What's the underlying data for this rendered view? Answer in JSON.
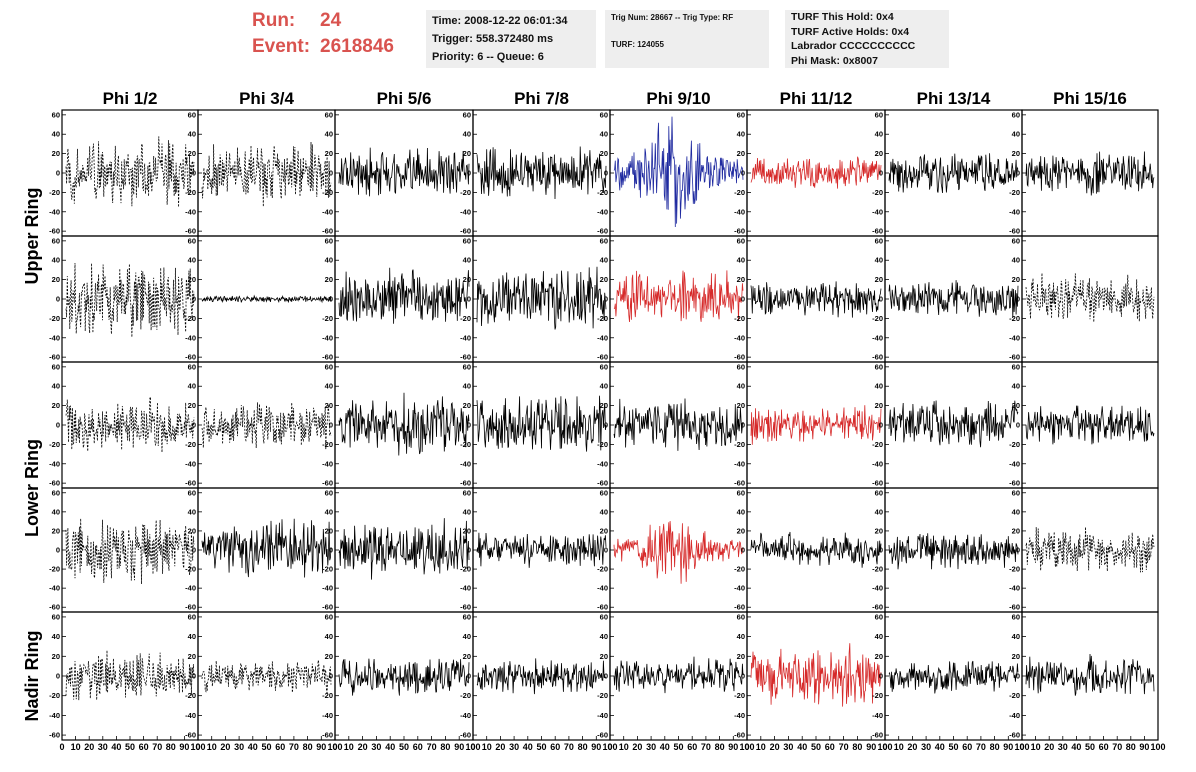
{
  "header": {
    "run_label": "Run:",
    "run_value": "24",
    "event_label": "Event:",
    "event_value": "2618846"
  },
  "info_box_1": {
    "time": "Time: 2008-12-22 06:01:34",
    "trigger": "Trigger: 558.372480 ms",
    "priority": "Priority: 6 -- Queue: 6"
  },
  "info_box_2": {
    "trig": "Trig Num: 28667 -- Trig Type: RF",
    "turf": "TURF: 124055"
  },
  "info_box_3": {
    "turf_hold": "TURF This Hold: 0x4",
    "turf_active": "TURF Active Holds: 0x4",
    "labrador": "Labrador CCCCCCCCCC",
    "phi_mask": "Phi Mask: 0x8007"
  },
  "chart_data": {
    "type": "line",
    "columns": [
      "Phi 1/2",
      "Phi 3/4",
      "Phi 5/6",
      "Phi 7/8",
      "Phi 9/10",
      "Phi 11/12",
      "Phi 13/14",
      "Phi 15/16"
    ],
    "rows": [
      "Upper Ring",
      "",
      "Lower Ring",
      "",
      "Nadir Ring"
    ],
    "ylim": [
      -65,
      65
    ],
    "yticks": [
      -60,
      -40,
      -20,
      0,
      20,
      40,
      60
    ],
    "xlim": [
      0,
      100
    ],
    "xticks": [
      0,
      10,
      20,
      30,
      40,
      50,
      60,
      70,
      80,
      90,
      100
    ],
    "colors": {
      "black": "#000000",
      "blue": "#1f2aa0",
      "red": "#d62a2a"
    },
    "panels": [
      [
        {
          "color": "black",
          "style": "dashed",
          "amp": 32
        },
        {
          "color": "black",
          "style": "dashed",
          "amp": 28
        },
        {
          "color": "black",
          "style": "solid",
          "amp": 22
        },
        {
          "color": "black",
          "style": "solid",
          "amp": 24
        },
        {
          "color": "blue",
          "style": "solid",
          "amp": 30,
          "burst": true
        },
        {
          "color": "red",
          "style": "solid",
          "amp": 14
        },
        {
          "color": "black",
          "style": "solid",
          "amp": 18
        },
        {
          "color": "black",
          "style": "solid",
          "amp": 20
        }
      ],
      [
        {
          "color": "black",
          "style": "dashed",
          "amp": 35
        },
        {
          "color": "black",
          "style": "solid",
          "amp": 3
        },
        {
          "color": "black",
          "style": "solid",
          "amp": 26
        },
        {
          "color": "black",
          "style": "solid",
          "amp": 28
        },
        {
          "color": "red",
          "style": "solid",
          "amp": 24
        },
        {
          "color": "black",
          "style": "solid",
          "amp": 16
        },
        {
          "color": "black",
          "style": "solid",
          "amp": 16
        },
        {
          "color": "black",
          "style": "dashed",
          "amp": 22
        }
      ],
      [
        {
          "color": "black",
          "style": "dashed",
          "amp": 25
        },
        {
          "color": "black",
          "style": "dashed",
          "amp": 22
        },
        {
          "color": "black",
          "style": "solid",
          "amp": 26
        },
        {
          "color": "black",
          "style": "solid",
          "amp": 26
        },
        {
          "color": "black",
          "style": "solid",
          "amp": 22
        },
        {
          "color": "red",
          "style": "solid",
          "amp": 16
        },
        {
          "color": "black",
          "style": "solid",
          "amp": 22
        },
        {
          "color": "black",
          "style": "solid",
          "amp": 17
        }
      ],
      [
        {
          "color": "black",
          "style": "dashed",
          "amp": 30
        },
        {
          "color": "black",
          "style": "solid",
          "amp": 28
        },
        {
          "color": "black",
          "style": "solid",
          "amp": 26
        },
        {
          "color": "black",
          "style": "solid",
          "amp": 16
        },
        {
          "color": "red",
          "style": "solid",
          "amp": 22,
          "burst": true
        },
        {
          "color": "black",
          "style": "solid",
          "amp": 16
        },
        {
          "color": "black",
          "style": "solid",
          "amp": 16
        },
        {
          "color": "black",
          "style": "dashed",
          "amp": 20
        }
      ],
      [
        {
          "color": "black",
          "style": "dashed",
          "amp": 22
        },
        {
          "color": "black",
          "style": "dashed",
          "amp": 14
        },
        {
          "color": "black",
          "style": "solid",
          "amp": 16
        },
        {
          "color": "black",
          "style": "solid",
          "amp": 15
        },
        {
          "color": "black",
          "style": "solid",
          "amp": 16
        },
        {
          "color": "red",
          "style": "solid",
          "amp": 26
        },
        {
          "color": "black",
          "style": "solid",
          "amp": 14
        },
        {
          "color": "black",
          "style": "solid",
          "amp": 18
        }
      ]
    ]
  }
}
